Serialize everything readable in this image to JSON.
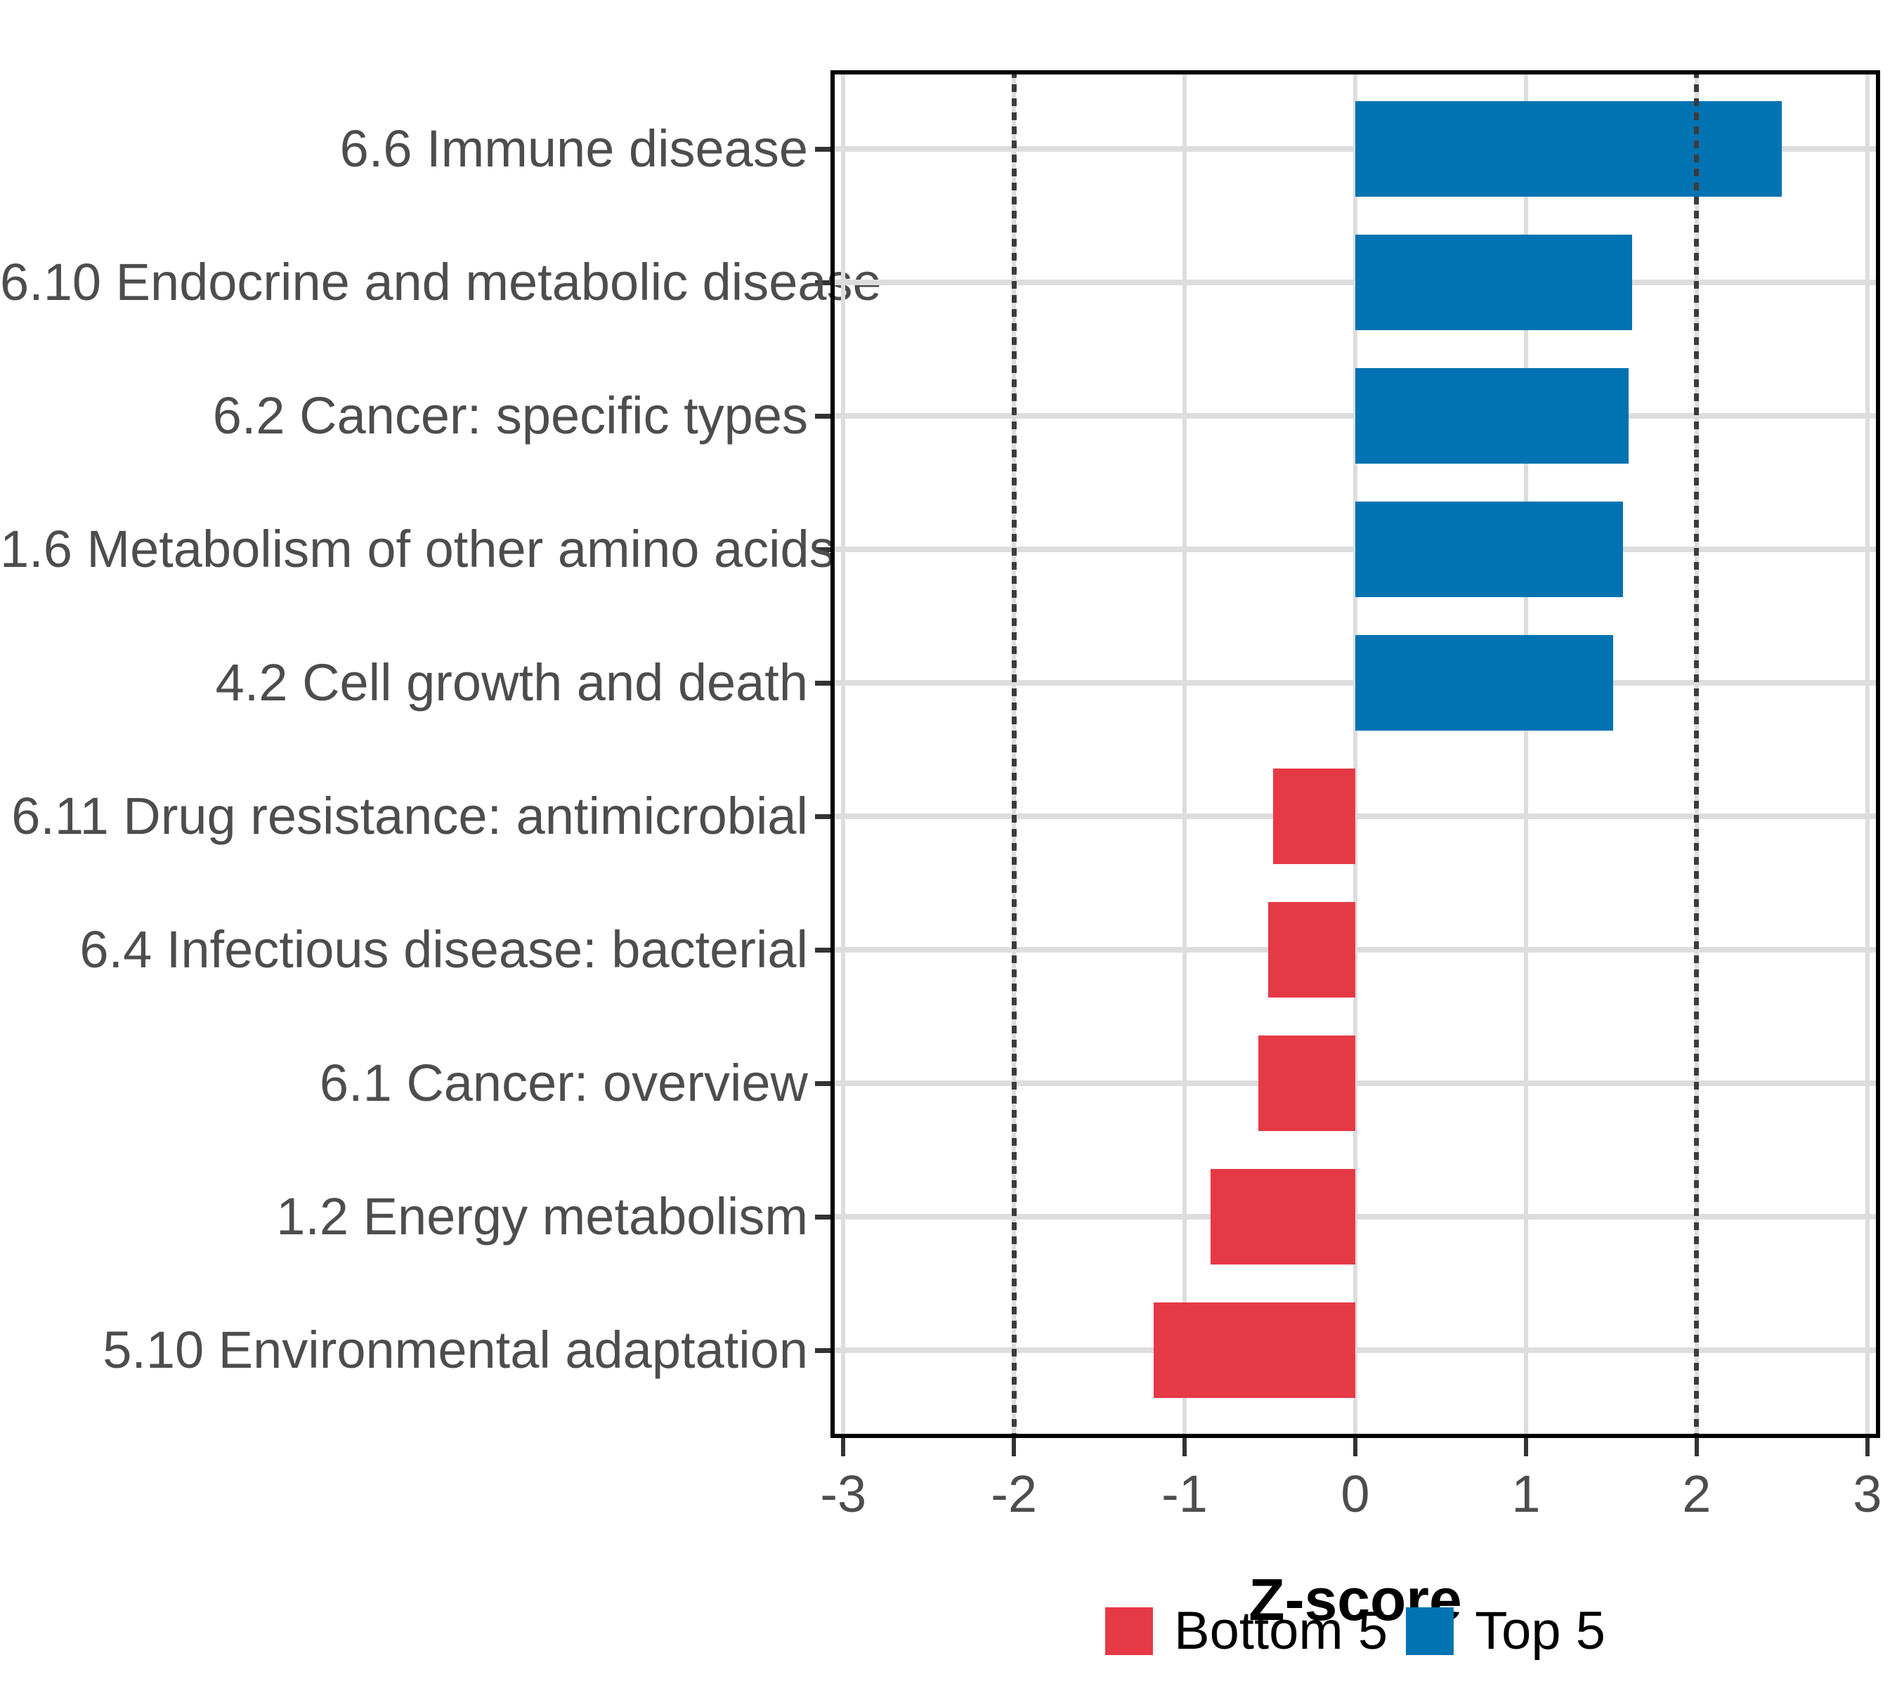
{
  "figure": {
    "background": "#FFFFFF"
  },
  "chart_data": {
    "type": "bar",
    "orientation": "horizontal",
    "title": "",
    "xlabel": "Z-score",
    "ylabel": "",
    "xlim": [
      -3.075,
      3.075
    ],
    "x_tick_values": [
      -3,
      -2,
      -1,
      0,
      1,
      2,
      3
    ],
    "x_tick_labels": [
      "-3",
      "-2",
      "-1",
      "0",
      "1",
      "2",
      "3"
    ],
    "grid": true,
    "legend_position": "bottom",
    "reference_lines": {
      "values": [
        -2,
        2
      ],
      "style": "dashed",
      "color": "#3C3C3C"
    },
    "categories": [
      "6.6 Immune disease",
      "6.10 Endocrine and metabolic disease",
      "6.2 Cancer: specific types",
      "1.6 Metabolism of other amino acids",
      "4.2 Cell growth and death",
      "6.11 Drug resistance: antimicrobial",
      "6.4 Infectious disease: bacterial",
      "6.1 Cancer: overview",
      "1.2 Energy metabolism",
      "5.10 Environmental adaptation"
    ],
    "values": [
      2.5,
      1.62,
      1.6,
      1.57,
      1.51,
      -0.48,
      -0.51,
      -0.57,
      -0.85,
      -1.18
    ],
    "bars": [
      {
        "label": "6.6 Immune disease",
        "value": 2.5,
        "group": "Top 5"
      },
      {
        "label": "6.10 Endocrine and metabolic disease",
        "value": 1.62,
        "group": "Top 5"
      },
      {
        "label": "6.2 Cancer: specific types",
        "value": 1.6,
        "group": "Top 5"
      },
      {
        "label": "1.6 Metabolism of other amino acids",
        "value": 1.57,
        "group": "Top 5"
      },
      {
        "label": "4.2 Cell growth and death",
        "value": 1.51,
        "group": "Top 5"
      },
      {
        "label": "6.11 Drug resistance: antimicrobial",
        "value": -0.48,
        "group": "Bottom 5"
      },
      {
        "label": "6.4 Infectious disease: bacterial",
        "value": -0.51,
        "group": "Bottom 5"
      },
      {
        "label": "6.1 Cancer: overview",
        "value": -0.57,
        "group": "Bottom 5"
      },
      {
        "label": "1.2 Energy metabolism",
        "value": -0.85,
        "group": "Bottom 5"
      },
      {
        "label": "5.10 Environmental adaptation",
        "value": -1.18,
        "group": "Bottom 5"
      }
    ],
    "legend": [
      {
        "label": "Bottom 5",
        "color": "#E63946"
      },
      {
        "label": "Top 5",
        "color": "#0173B2"
      }
    ],
    "colors": {
      "top5": "#0173B2",
      "bottom5": "#E63946",
      "grid": "#DDDDDD",
      "axis_text": "#4D4D4D",
      "tick_mark": "#333333",
      "panel_border": "#000000",
      "reference_line": "#3C3C3C"
    }
  }
}
